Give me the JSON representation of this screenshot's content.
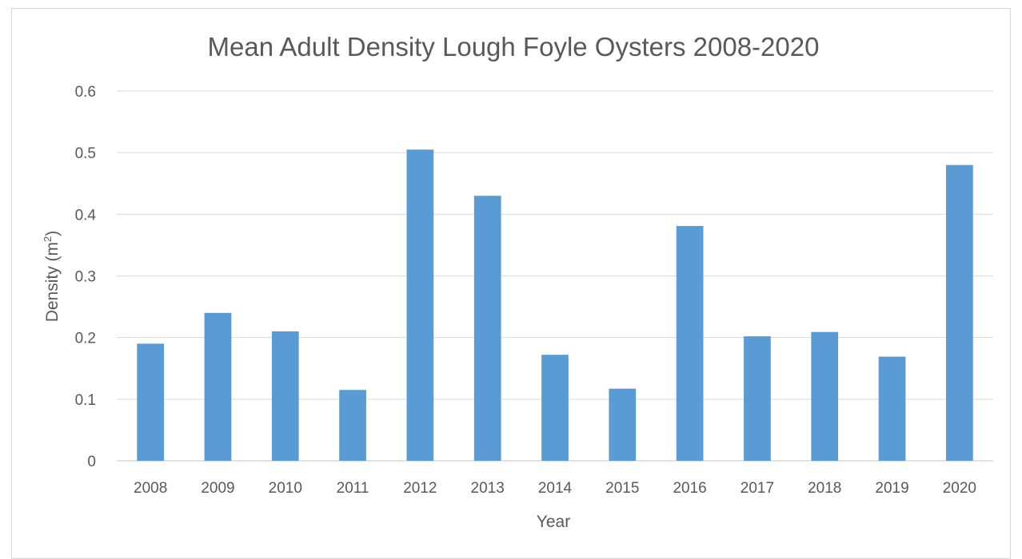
{
  "chart_data": {
    "type": "bar",
    "title": "Mean Adult Density Lough Foyle Oysters 2008-2020",
    "xlabel": "Year",
    "ylabel": "Density (m",
    "ylabel_superscript": "2",
    "ylabel_close": ")",
    "ylim": [
      0,
      0.6
    ],
    "yticks": [
      "0",
      "0.1",
      "0.2",
      "0.3",
      "0.4",
      "0.5",
      "0.6"
    ],
    "grid": true,
    "legend": "none",
    "categories": [
      "2008",
      "2009",
      "2010",
      "2011",
      "2012",
      "2013",
      "2014",
      "2015",
      "2016",
      "2017",
      "2018",
      "2019",
      "2020"
    ],
    "values": [
      0.19,
      0.24,
      0.21,
      0.115,
      0.505,
      0.43,
      0.172,
      0.117,
      0.381,
      0.202,
      0.209,
      0.169,
      0.48
    ],
    "bar_color": "#5b9bd5"
  }
}
